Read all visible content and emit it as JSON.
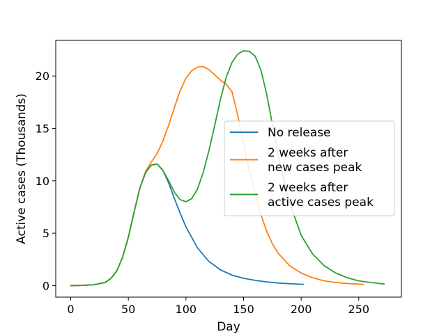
{
  "chart_data": {
    "type": "line",
    "title": "",
    "xlabel": "Day",
    "ylabel": "Active cases (Thousands)",
    "xlim": [
      -13,
      287
    ],
    "ylim": [
      -1.1,
      23.4
    ],
    "xticks": [
      0,
      50,
      100,
      150,
      200,
      250
    ],
    "yticks": [
      0,
      5,
      10,
      15,
      20
    ],
    "grid": false,
    "legend_position": "center-right",
    "series": [
      {
        "name": "No release",
        "color": "#1f77b4",
        "x": [
          0,
          10,
          20,
          30,
          35,
          40,
          45,
          50,
          55,
          60,
          65,
          70,
          75,
          80,
          85,
          90,
          95,
          100,
          110,
          120,
          130,
          140,
          150,
          160,
          170,
          180,
          190,
          202
        ],
        "y": [
          0,
          0.02,
          0.08,
          0.3,
          0.7,
          1.4,
          2.7,
          4.6,
          7.0,
          9.3,
          10.8,
          11.5,
          11.6,
          11.0,
          9.8,
          8.3,
          6.9,
          5.6,
          3.6,
          2.3,
          1.5,
          1.0,
          0.7,
          0.5,
          0.35,
          0.25,
          0.18,
          0.12
        ]
      },
      {
        "name": "2 weeks after\nnew cases peak",
        "color": "#ff7f0e",
        "x": [
          0,
          10,
          20,
          30,
          35,
          40,
          45,
          50,
          55,
          60,
          65,
          70,
          75,
          80,
          85,
          90,
          95,
          100,
          105,
          110,
          115,
          120,
          125,
          130,
          135,
          140,
          145,
          150,
          155,
          160,
          165,
          170,
          175,
          180,
          190,
          200,
          210,
          220,
          230,
          240,
          254
        ],
        "y": [
          0,
          0.02,
          0.08,
          0.3,
          0.7,
          1.4,
          2.7,
          4.6,
          7.0,
          9.3,
          10.9,
          11.8,
          12.6,
          13.8,
          15.3,
          17.0,
          18.6,
          19.8,
          20.5,
          20.85,
          20.9,
          20.6,
          20.1,
          19.6,
          19.2,
          18.5,
          16.2,
          13.6,
          11.0,
          8.8,
          6.8,
          5.2,
          4.0,
          3.1,
          1.9,
          1.2,
          0.75,
          0.45,
          0.3,
          0.2,
          0.12
        ]
      },
      {
        "name": "2 weeks after\nactive cases peak",
        "color": "#2ca02c",
        "x": [
          0,
          10,
          20,
          30,
          35,
          40,
          45,
          50,
          55,
          60,
          65,
          70,
          75,
          80,
          85,
          90,
          95,
          100,
          105,
          110,
          115,
          120,
          125,
          130,
          135,
          140,
          145,
          150,
          155,
          160,
          165,
          170,
          175,
          180,
          185,
          190,
          200,
          210,
          220,
          230,
          240,
          250,
          260,
          272
        ],
        "y": [
          0,
          0.02,
          0.08,
          0.3,
          0.7,
          1.4,
          2.7,
          4.6,
          7.0,
          9.3,
          10.8,
          11.5,
          11.6,
          11.0,
          10.0,
          8.9,
          8.2,
          8.0,
          8.3,
          9.2,
          10.8,
          12.9,
          15.3,
          17.8,
          19.9,
          21.3,
          22.1,
          22.4,
          22.35,
          21.9,
          20.6,
          18.3,
          15.4,
          12.5,
          10.0,
          7.9,
          4.8,
          3.0,
          1.9,
          1.2,
          0.75,
          0.45,
          0.3,
          0.15
        ]
      }
    ]
  }
}
